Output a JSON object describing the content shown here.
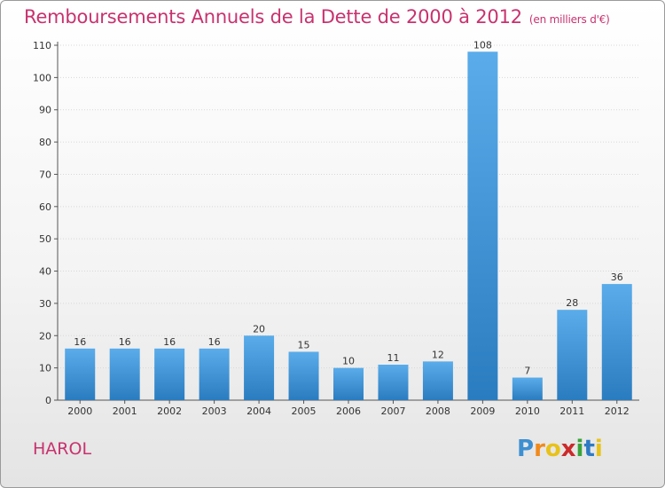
{
  "header": {
    "title": "Remboursements Annuels de la Dette de 2000 à 2012",
    "unit": "(en milliers d'€)"
  },
  "footer": {
    "commune": "HAROL",
    "logo": {
      "letters": [
        "P",
        "r",
        "o",
        "x",
        "i",
        "t",
        "i"
      ],
      "colors": [
        "#3d8fd1",
        "#f08a1c",
        "#e8c21a",
        "#cc2a2a",
        "#3aa33a",
        "#2e7bc4",
        "#e8c21a"
      ]
    }
  },
  "chart_data": {
    "type": "bar",
    "title": "Remboursements Annuels de la Dette de 2000 à 2012",
    "subtitle": "(en milliers d'€)",
    "categories": [
      "2000",
      "2001",
      "2002",
      "2003",
      "2004",
      "2005",
      "2006",
      "2007",
      "2008",
      "2009",
      "2010",
      "2011",
      "2012"
    ],
    "values": [
      16,
      16,
      16,
      16,
      20,
      15,
      10,
      11,
      12,
      108,
      7,
      28,
      36
    ],
    "data_labels": [
      "16",
      "16",
      "16",
      "16",
      "20",
      "15",
      "10",
      "11",
      "12",
      "108",
      "7",
      "28",
      "36"
    ],
    "ylim": [
      0,
      110
    ],
    "yticks": [
      0,
      10,
      20,
      30,
      40,
      50,
      60,
      70,
      80,
      90,
      100,
      110
    ],
    "ytick_labels": [
      "0",
      "10",
      "20",
      "30",
      "40",
      "50",
      "60",
      "70",
      "80",
      "90",
      "100",
      "110"
    ],
    "grid": true,
    "bar_color_top": "#5aacea",
    "bar_color_bottom": "#2a7cc0"
  }
}
